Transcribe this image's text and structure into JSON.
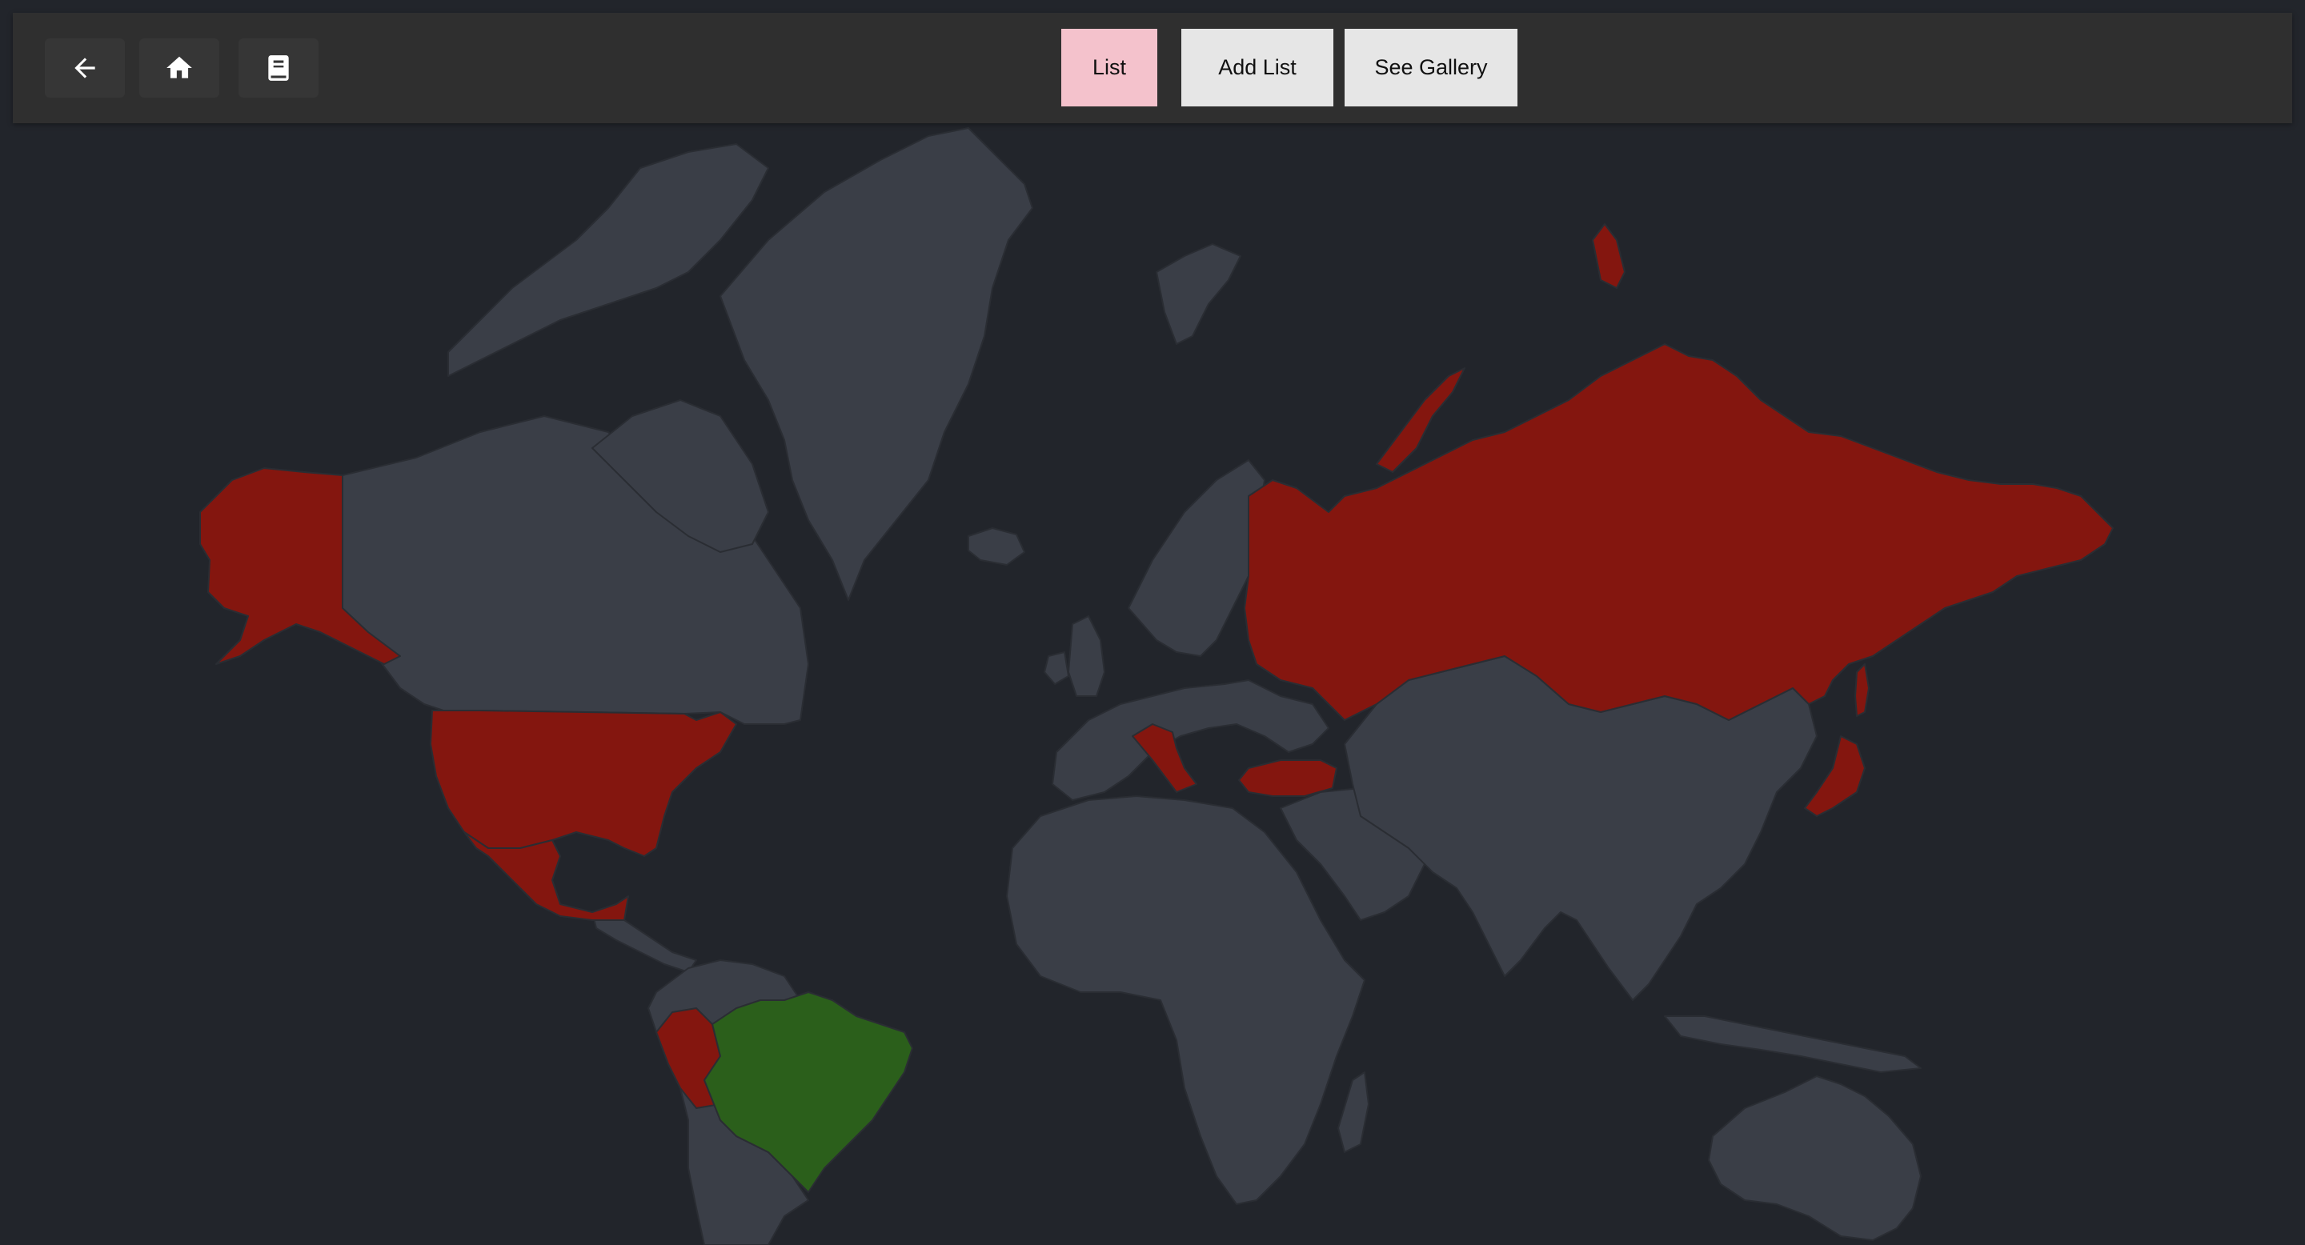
{
  "toolbar": {
    "icons": [
      {
        "name": "back-arrow-icon"
      },
      {
        "name": "home-icon"
      },
      {
        "name": "book-icon"
      }
    ],
    "buttons": [
      {
        "id": "list",
        "label": "List",
        "bg": "#f4c2cc"
      },
      {
        "id": "add-list",
        "label": "Add List",
        "bg": "#e6e6e6"
      },
      {
        "id": "see-gallery",
        "label": "See Gallery",
        "bg": "#e6e6e6"
      }
    ]
  },
  "map": {
    "colors": {
      "background": "#22252b",
      "land_default": "#3a3e47",
      "highlight_red": "#84160f",
      "highlight_green": "#2b5f1b"
    },
    "highlighted_red": [
      "United States",
      "Mexico",
      "Peru",
      "Italy",
      "Turkey",
      "Russia",
      "Japan"
    ],
    "highlighted_green": [
      "Brazil"
    ]
  }
}
